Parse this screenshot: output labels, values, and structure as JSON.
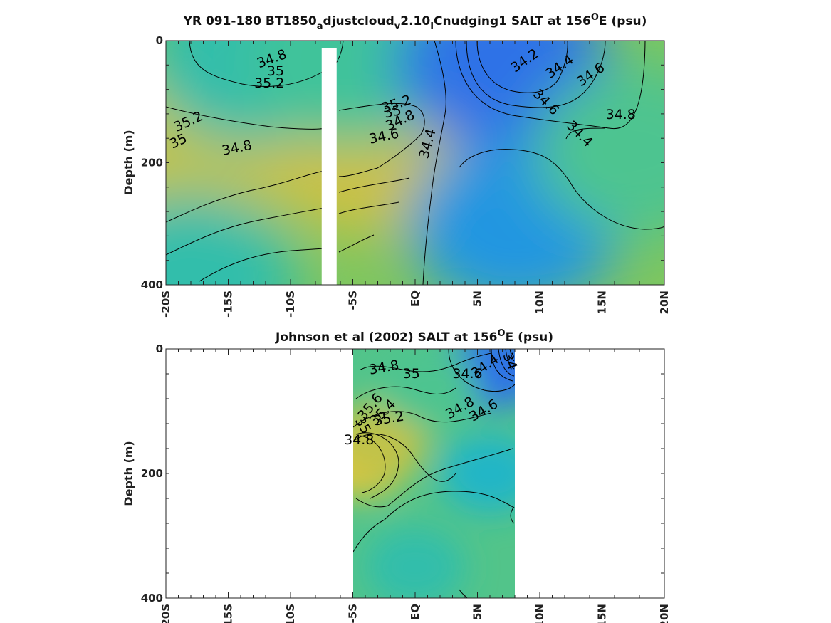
{
  "chart_data": [
    {
      "type": "heatmap",
      "title_main": "YR 091-180 BT1850",
      "title_sub1": "a",
      "title_mid1": "djustcloud",
      "title_sub2": "v",
      "title_mid2": "2.10",
      "title_sub3": "I",
      "title_mid3": "Cnudging1 SALT at 156",
      "title_sup": "O",
      "title_end": "E (psu)",
      "ylabel": "Depth (m)",
      "xlabel": "",
      "xlim": [
        -20,
        20
      ],
      "ylim": [
        400,
        0
      ],
      "xticks": [
        {
          "value": -20,
          "label": "-20S"
        },
        {
          "value": -15,
          "label": "-15S"
        },
        {
          "value": -10,
          "label": "-10S"
        },
        {
          "value": -5,
          "label": "-5S"
        },
        {
          "value": 0,
          "label": "EQ"
        },
        {
          "value": 5,
          "label": "5N"
        },
        {
          "value": 10,
          "label": "10N"
        },
        {
          "value": 15,
          "label": "15N"
        },
        {
          "value": 20,
          "label": "20N"
        }
      ],
      "yticks": [
        {
          "value": 0,
          "label": "0"
        },
        {
          "value": 200,
          "label": "200"
        },
        {
          "value": 400,
          "label": "400"
        }
      ],
      "data_gap_lat": [
        -7.5,
        -6.3
      ],
      "colormap": [
        "#3d26a8",
        "#2e7aee",
        "#17b2d4",
        "#3fc39a",
        "#9ec95a",
        "#e4bd38",
        "#fadb2a"
      ],
      "color_range": [
        33.8,
        35.8
      ],
      "regions": [
        {
          "lat": -19,
          "depth": 200,
          "value": 35.3
        },
        {
          "lat": -4,
          "depth": 180,
          "value": 35.35
        },
        {
          "lat": -13,
          "depth": 30,
          "value": 34.7
        },
        {
          "lat": -5,
          "depth": 30,
          "value": 34.8
        },
        {
          "lat": 7,
          "depth": 40,
          "value": 34.1
        },
        {
          "lat": 8,
          "depth": 300,
          "value": 34.3
        },
        {
          "lat": 18,
          "depth": 180,
          "value": 34.85
        },
        {
          "lat": -18,
          "depth": 390,
          "value": 34.7
        }
      ],
      "contour_labels": [
        {
          "text": "34.8",
          "lat": -11.5,
          "depth": 30,
          "angle": -20
        },
        {
          "text": "35",
          "lat": -11.2,
          "depth": 50,
          "angle": 0
        },
        {
          "text": "35.2",
          "lat": -11.7,
          "depth": 70,
          "angle": 0
        },
        {
          "text": "35.2",
          "lat": -18.2,
          "depth": 133,
          "angle": -25
        },
        {
          "text": "35",
          "lat": -19.0,
          "depth": 165,
          "angle": -25
        },
        {
          "text": "34.8",
          "lat": -14.3,
          "depth": 176,
          "angle": -12
        },
        {
          "text": "35.2",
          "lat": -1.5,
          "depth": 104,
          "angle": -18
        },
        {
          "text": "35",
          "lat": -1.8,
          "depth": 117,
          "angle": -12
        },
        {
          "text": "34.8",
          "lat": -1.2,
          "depth": 131,
          "angle": -25
        },
        {
          "text": "34.6",
          "lat": -2.5,
          "depth": 157,
          "angle": -12
        },
        {
          "text": "34.4",
          "lat": 1.0,
          "depth": 169,
          "angle": -75
        },
        {
          "text": "34.2",
          "lat": 8.8,
          "depth": 33,
          "angle": -35
        },
        {
          "text": "34.4",
          "lat": 11.6,
          "depth": 43,
          "angle": -35
        },
        {
          "text": "34.6",
          "lat": 14.1,
          "depth": 56,
          "angle": -35
        },
        {
          "text": "34.6",
          "lat": 10.5,
          "depth": 101,
          "angle": 45
        },
        {
          "text": "34.8",
          "lat": 16.5,
          "depth": 121,
          "angle": 0
        },
        {
          "text": "34.4",
          "lat": 13.2,
          "depth": 153,
          "angle": 45
        }
      ]
    },
    {
      "type": "heatmap",
      "title_main": "Johnson et al (2002) SALT at 156",
      "title_sup": "O",
      "title_end": "E (psu)",
      "ylabel": "Depth (m)",
      "xlabel": "",
      "xlim": [
        -20,
        20
      ],
      "ylim": [
        400,
        0
      ],
      "data_extent_lat": [
        -5,
        8
      ],
      "xticks": [
        {
          "value": -20,
          "label": "-20S"
        },
        {
          "value": -15,
          "label": "-15S"
        },
        {
          "value": -10,
          "label": "-10S"
        },
        {
          "value": -5,
          "label": "-5S"
        },
        {
          "value": 0,
          "label": "EQ"
        },
        {
          "value": 5,
          "label": "5N"
        },
        {
          "value": 10,
          "label": "10N"
        },
        {
          "value": 15,
          "label": "15N"
        },
        {
          "value": 20,
          "label": "20N"
        }
      ],
      "yticks": [
        {
          "value": 0,
          "label": "0"
        },
        {
          "value": 200,
          "label": "200"
        },
        {
          "value": 400,
          "label": "400"
        }
      ],
      "regions": [
        {
          "lat": -4.3,
          "depth": 175,
          "value": 35.6
        },
        {
          "lat": -3,
          "depth": 150,
          "value": 35.3
        },
        {
          "lat": 6.5,
          "depth": 30,
          "value": 34.1
        },
        {
          "lat": 6,
          "depth": 200,
          "value": 34.55
        },
        {
          "lat": 1,
          "depth": 60,
          "value": 34.85
        },
        {
          "lat": 0,
          "depth": 350,
          "value": 34.7
        }
      ],
      "contour_labels": [
        {
          "text": "34.8",
          "lat": -2.5,
          "depth": 30,
          "angle": -10
        },
        {
          "text": "35",
          "lat": -0.3,
          "depth": 40,
          "angle": 0
        },
        {
          "text": "34.4",
          "lat": 5.6,
          "depth": 28,
          "angle": -35
        },
        {
          "text": "34.6",
          "lat": 4.2,
          "depth": 40,
          "angle": 0
        },
        {
          "text": "34",
          "lat": 7.6,
          "depth": 20,
          "angle": 70
        },
        {
          "text": "35.6",
          "lat": -3.6,
          "depth": 93,
          "angle": -50
        },
        {
          "text": "35.4",
          "lat": -2.6,
          "depth": 102,
          "angle": -45
        },
        {
          "text": "35.2",
          "lat": -2.1,
          "depth": 112,
          "angle": -10
        },
        {
          "text": "35",
          "lat": -4.2,
          "depth": 123,
          "angle": 60
        },
        {
          "text": "34.8",
          "lat": 3.6,
          "depth": 95,
          "angle": -30
        },
        {
          "text": "34.6",
          "lat": 5.5,
          "depth": 99,
          "angle": -30
        },
        {
          "text": "34.8",
          "lat": -4.5,
          "depth": 146,
          "angle": 0
        }
      ]
    }
  ]
}
